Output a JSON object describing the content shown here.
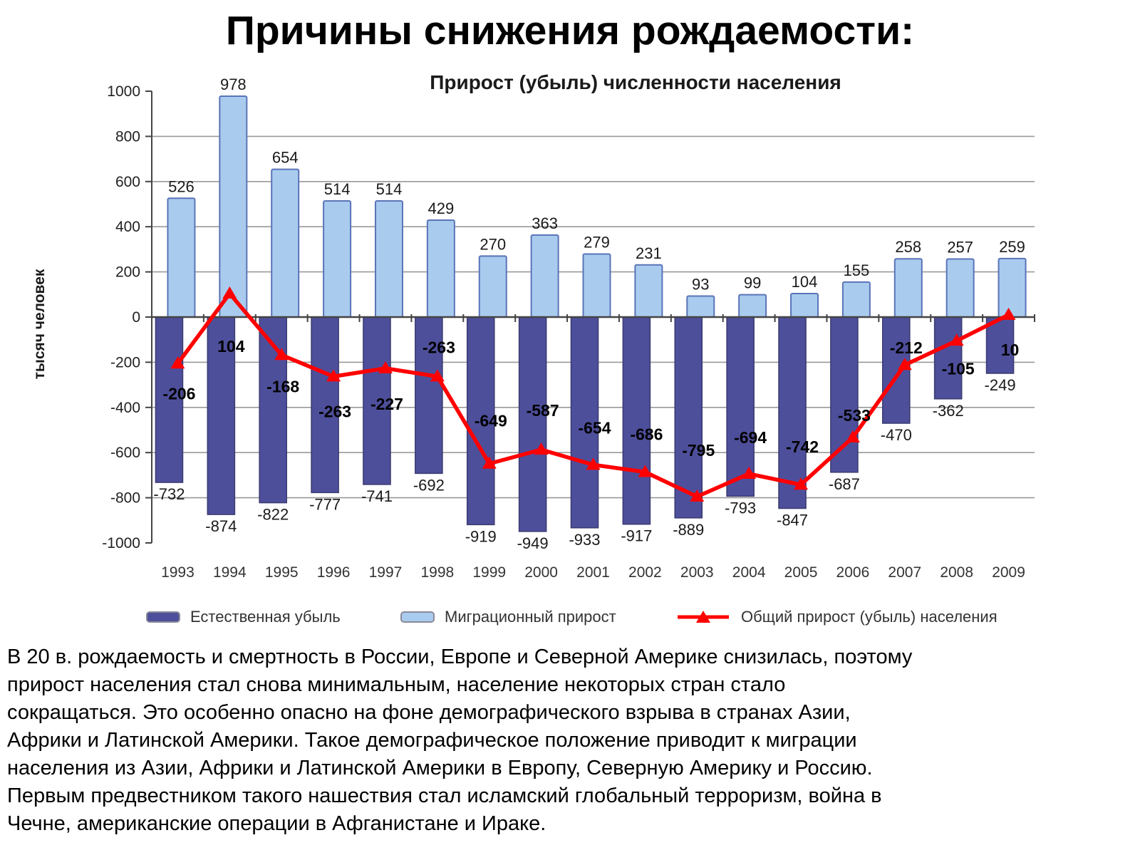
{
  "page": {
    "title": "Причины снижения рождаемости:",
    "body_lines": [
      "В 20 в. рождаемость и смертность в России, Европе и Северной Америке снизилась, поэтому",
      "прирост населения стал снова минимальным, население некоторых стран стало",
      "сокращаться. Это особенно опасно на фоне демографического взрыва в странах Азии,",
      "Африки и Латинской Америки. Такое демографическое положение приводит к миграции",
      "населения из Азии, Африки и Латинской Америки в Европу, Северную Америку и Россию.",
      "Первым предвестником такого нашествия стал исламский глобальный терроризм, война в",
      "Чечне, американские операции в Афганистане и Ираке."
    ]
  },
  "chart_data": {
    "type": "bar",
    "subtype": "clustered bars with overlaid line",
    "title": "Прирост (убыль) численности населения",
    "xlabel": "",
    "ylabel": "тысяч человек",
    "categories": [
      "1993",
      "1994",
      "1995",
      "1996",
      "1997",
      "1998",
      "1999",
      "2000",
      "2001",
      "2002",
      "2003",
      "2004",
      "2005",
      "2006",
      "2007",
      "2008",
      "2009"
    ],
    "series": [
      {
        "name": "Естественная убыль",
        "type": "bar",
        "values": [
          -732,
          -874,
          -822,
          -777,
          -741,
          -692,
          -919,
          -949,
          -933,
          -917,
          -889,
          -793,
          -847,
          -687,
          -470,
          -362,
          -249
        ],
        "color": "#4E4F9B",
        "border_color": "#3C3C74"
      },
      {
        "name": "Миграционный прирост",
        "type": "bar",
        "values": [
          526,
          978,
          654,
          514,
          514,
          429,
          270,
          363,
          279,
          231,
          93,
          99,
          104,
          155,
          258,
          257,
          259
        ],
        "color": "#A9CBEE",
        "border_color": "#5A74B8"
      },
      {
        "name": "Общий прирост (убыль) населения",
        "type": "line",
        "values": [
          -206,
          104,
          -168,
          -263,
          -227,
          -263,
          -649,
          -587,
          -654,
          -686,
          -795,
          -694,
          -742,
          -533,
          -212,
          -105,
          10
        ],
        "color": "#FF0000",
        "marker": "triangle"
      }
    ],
    "ylim": [
      -1000,
      1000
    ],
    "ytick_step": 200,
    "grid": true,
    "grid_color": "#999999",
    "axis_color": "#444444",
    "legend_position": "bottom",
    "line_label_dy": [
      50,
      82,
      52,
      57,
      58,
      -33,
      -52,
      -47,
      -44,
      -45,
      -57,
      -43,
      -45,
      -23,
      -16,
      47,
      57
    ]
  }
}
